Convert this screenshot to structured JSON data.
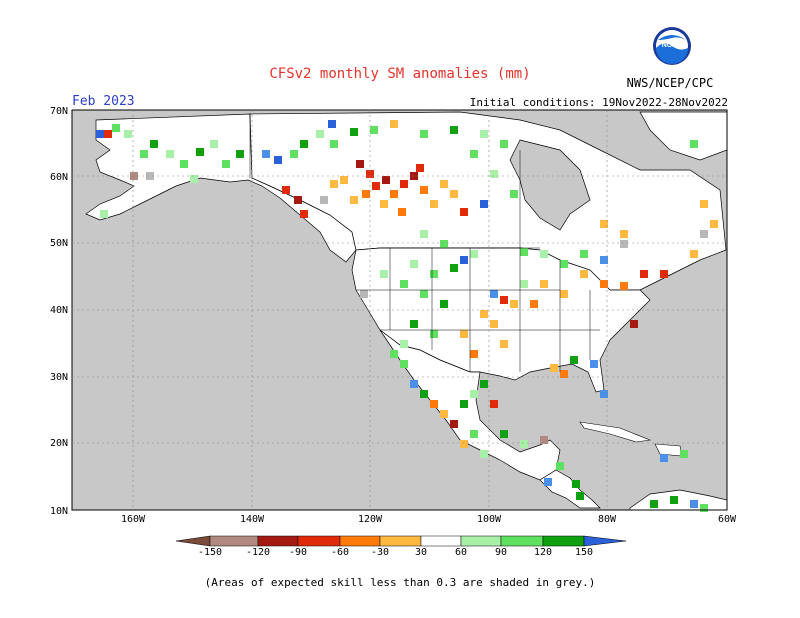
{
  "header": {
    "title": "CFSv2 monthly SM anomalies (mm)",
    "month": "Feb 2023",
    "initial_conditions": "Initial conditions: 19Nov2022-28Nov2022",
    "agency": "NWS/NCEP/CPC",
    "logo_text": "NOAA"
  },
  "map": {
    "lat_labels": [
      "70N",
      "60N",
      "50N",
      "40N",
      "30N",
      "20N",
      "10N"
    ],
    "lon_labels": [
      "160W",
      "140W",
      "120W",
      "100W",
      "80W",
      "60W"
    ],
    "land_color": "#c8c8c8",
    "ocean_color": "#c8c8c8"
  },
  "colorbar": {
    "tick_labels": [
      "-150",
      "-120",
      "-90",
      "-60",
      "-30",
      "30",
      "60",
      "90",
      "120",
      "150"
    ],
    "colors": [
      "#7a4a3a",
      "#b08a80",
      "#a41a10",
      "#e02a0a",
      "#ff7a0a",
      "#ffb840",
      "#ffffff",
      "#a8f0a8",
      "#60e060",
      "#10a010",
      "#4a90e8",
      "#2a60d8"
    ]
  },
  "footnote": "(Areas of expected skill less than 0.3 are shaded in grey.)"
}
